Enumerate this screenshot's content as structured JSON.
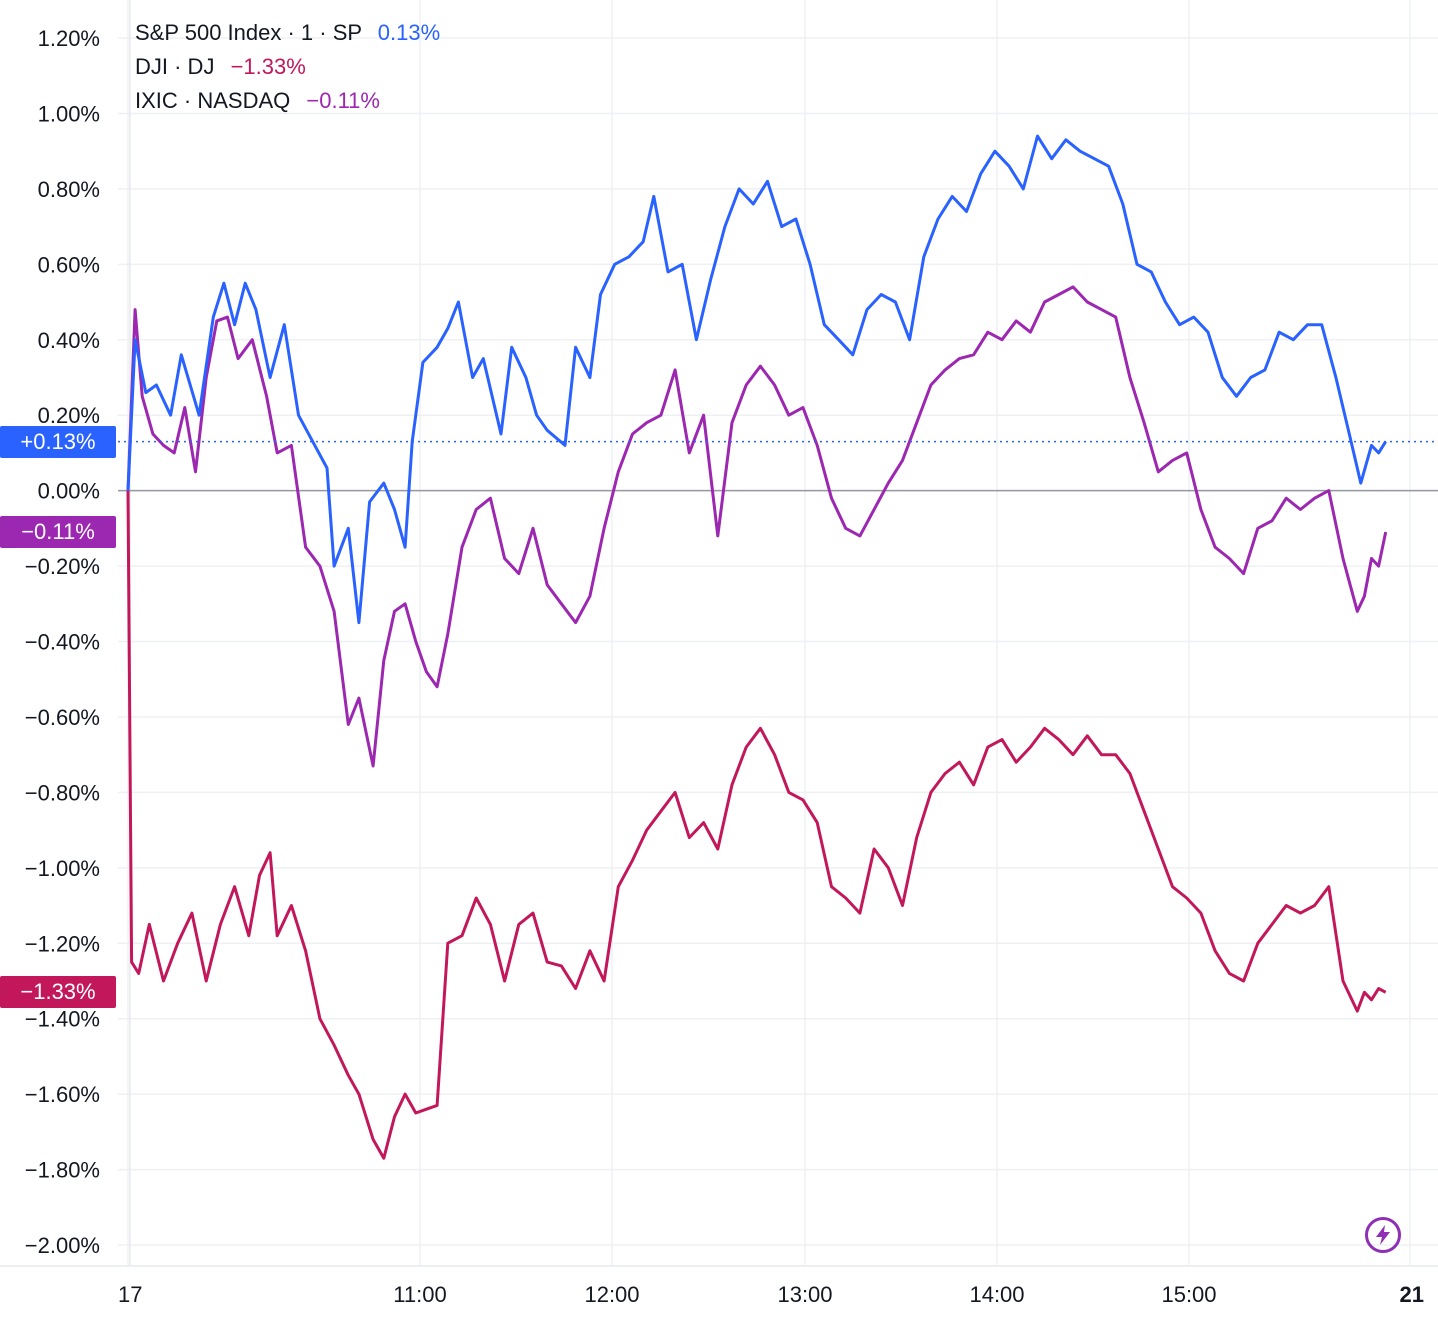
{
  "legend": {
    "rows": [
      {
        "label": "S&P 500 Index · 1 · SP",
        "value": "0.13%",
        "color": "#2962ff"
      },
      {
        "label": "DJI · DJ",
        "value": "−1.33%",
        "color": "#c2185b"
      },
      {
        "label": "IXIC · NASDAQ",
        "value": "−0.11%",
        "color": "#9c27b0"
      }
    ]
  },
  "badges": {
    "sp": "+0.13%",
    "ixic": "−0.11%",
    "dji": "−1.33%"
  },
  "chart_data": {
    "type": "line",
    "ylim": [
      -2.0,
      1.2
    ],
    "yticks": [
      "1.20%",
      "1.00%",
      "0.80%",
      "0.60%",
      "0.40%",
      "0.20%",
      "0.00%",
      "−0.20%",
      "−0.40%",
      "−0.60%",
      "−0.80%",
      "−1.00%",
      "−1.20%",
      "−1.40%",
      "−1.60%",
      "−1.80%",
      "−2.00%"
    ],
    "xticks": [
      "17",
      "11:00",
      "12:00",
      "13:00",
      "14:00",
      "15:00",
      "21"
    ],
    "grid": true,
    "series": [
      {
        "name": "S&P 500 Index · 1 · SP",
        "color": "#2962ff",
        "last": 0.13,
        "points": [
          [
            "10:00",
            0.0
          ],
          [
            "10:02",
            0.4
          ],
          [
            "10:05",
            0.26
          ],
          [
            "10:08",
            0.28
          ],
          [
            "10:12",
            0.2
          ],
          [
            "10:15",
            0.36
          ],
          [
            "10:20",
            0.2
          ],
          [
            "10:24",
            0.46
          ],
          [
            "10:27",
            0.55
          ],
          [
            "10:30",
            0.44
          ],
          [
            "10:33",
            0.55
          ],
          [
            "10:36",
            0.48
          ],
          [
            "10:40",
            0.3
          ],
          [
            "10:44",
            0.44
          ],
          [
            "10:48",
            0.2
          ],
          [
            "10:52",
            0.13
          ],
          [
            "10:56",
            0.06
          ],
          [
            "10:58",
            -0.2
          ],
          [
            "11:02",
            -0.1
          ],
          [
            "11:05",
            -0.35
          ],
          [
            "11:08",
            -0.03
          ],
          [
            "11:12",
            0.02
          ],
          [
            "11:15",
            -0.05
          ],
          [
            "11:18",
            -0.15
          ],
          [
            "11:20",
            0.13
          ],
          [
            "11:23",
            0.34
          ],
          [
            "11:27",
            0.38
          ],
          [
            "11:30",
            0.43
          ],
          [
            "11:33",
            0.5
          ],
          [
            "11:37",
            0.3
          ],
          [
            "11:40",
            0.35
          ],
          [
            "11:45",
            0.15
          ],
          [
            "11:48",
            0.38
          ],
          [
            "11:52",
            0.3
          ],
          [
            "11:55",
            0.2
          ],
          [
            "11:58",
            0.16
          ],
          [
            "12:03",
            0.12
          ],
          [
            "12:06",
            0.38
          ],
          [
            "12:10",
            0.3
          ],
          [
            "12:13",
            0.52
          ],
          [
            "12:17",
            0.6
          ],
          [
            "12:21",
            0.62
          ],
          [
            "12:25",
            0.66
          ],
          [
            "12:28",
            0.78
          ],
          [
            "12:32",
            0.58
          ],
          [
            "12:36",
            0.6
          ],
          [
            "12:40",
            0.4
          ],
          [
            "12:44",
            0.56
          ],
          [
            "12:48",
            0.7
          ],
          [
            "12:52",
            0.8
          ],
          [
            "12:56",
            0.76
          ],
          [
            "13:00",
            0.82
          ],
          [
            "13:04",
            0.7
          ],
          [
            "13:08",
            0.72
          ],
          [
            "13:12",
            0.6
          ],
          [
            "13:16",
            0.44
          ],
          [
            "13:20",
            0.4
          ],
          [
            "13:24",
            0.36
          ],
          [
            "13:28",
            0.48
          ],
          [
            "13:32",
            0.52
          ],
          [
            "13:36",
            0.5
          ],
          [
            "13:40",
            0.4
          ],
          [
            "13:44",
            0.62
          ],
          [
            "13:48",
            0.72
          ],
          [
            "13:52",
            0.78
          ],
          [
            "13:56",
            0.74
          ],
          [
            "14:00",
            0.84
          ],
          [
            "14:04",
            0.9
          ],
          [
            "14:08",
            0.86
          ],
          [
            "14:12",
            0.8
          ],
          [
            "14:16",
            0.94
          ],
          [
            "14:20",
            0.88
          ],
          [
            "14:24",
            0.93
          ],
          [
            "14:28",
            0.9
          ],
          [
            "14:32",
            0.88
          ],
          [
            "14:36",
            0.86
          ],
          [
            "14:40",
            0.76
          ],
          [
            "14:44",
            0.6
          ],
          [
            "14:48",
            0.58
          ],
          [
            "14:52",
            0.5
          ],
          [
            "14:56",
            0.44
          ],
          [
            "15:00",
            0.46
          ],
          [
            "15:04",
            0.42
          ],
          [
            "15:08",
            0.3
          ],
          [
            "15:12",
            0.25
          ],
          [
            "15:16",
            0.3
          ],
          [
            "15:20",
            0.32
          ],
          [
            "15:24",
            0.42
          ],
          [
            "15:28",
            0.4
          ],
          [
            "15:32",
            0.44
          ],
          [
            "15:36",
            0.44
          ],
          [
            "15:40",
            0.3
          ],
          [
            "15:44",
            0.14
          ],
          [
            "15:47",
            0.02
          ],
          [
            "15:50",
            0.12
          ],
          [
            "15:52",
            0.1
          ],
          [
            "15:54",
            0.13
          ]
        ]
      },
      {
        "name": "DJI · DJ",
        "color": "#c2185b",
        "last": -1.33,
        "points": [
          [
            "10:00",
            0.0
          ],
          [
            "10:01",
            -1.25
          ],
          [
            "10:03",
            -1.28
          ],
          [
            "10:06",
            -1.15
          ],
          [
            "10:10",
            -1.3
          ],
          [
            "10:14",
            -1.2
          ],
          [
            "10:18",
            -1.12
          ],
          [
            "10:22",
            -1.3
          ],
          [
            "10:26",
            -1.15
          ],
          [
            "10:30",
            -1.05
          ],
          [
            "10:34",
            -1.18
          ],
          [
            "10:37",
            -1.02
          ],
          [
            "10:40",
            -0.96
          ],
          [
            "10:42",
            -1.18
          ],
          [
            "10:46",
            -1.1
          ],
          [
            "10:50",
            -1.22
          ],
          [
            "10:54",
            -1.4
          ],
          [
            "10:58",
            -1.47
          ],
          [
            "11:02",
            -1.55
          ],
          [
            "11:05",
            -1.6
          ],
          [
            "11:09",
            -1.72
          ],
          [
            "11:12",
            -1.77
          ],
          [
            "11:15",
            -1.66
          ],
          [
            "11:18",
            -1.6
          ],
          [
            "11:21",
            -1.65
          ],
          [
            "11:24",
            -1.64
          ],
          [
            "11:27",
            -1.63
          ],
          [
            "11:30",
            -1.2
          ],
          [
            "11:34",
            -1.18
          ],
          [
            "11:38",
            -1.08
          ],
          [
            "11:42",
            -1.15
          ],
          [
            "11:46",
            -1.3
          ],
          [
            "11:50",
            -1.15
          ],
          [
            "11:54",
            -1.12
          ],
          [
            "11:58",
            -1.25
          ],
          [
            "12:02",
            -1.26
          ],
          [
            "12:06",
            -1.32
          ],
          [
            "12:10",
            -1.22
          ],
          [
            "12:14",
            -1.3
          ],
          [
            "12:18",
            -1.05
          ],
          [
            "12:22",
            -0.98
          ],
          [
            "12:26",
            -0.9
          ],
          [
            "12:30",
            -0.85
          ],
          [
            "12:34",
            -0.8
          ],
          [
            "12:38",
            -0.92
          ],
          [
            "12:42",
            -0.88
          ],
          [
            "12:46",
            -0.95
          ],
          [
            "12:50",
            -0.78
          ],
          [
            "12:54",
            -0.68
          ],
          [
            "12:58",
            -0.63
          ],
          [
            "13:02",
            -0.7
          ],
          [
            "13:06",
            -0.8
          ],
          [
            "13:10",
            -0.82
          ],
          [
            "13:14",
            -0.88
          ],
          [
            "13:18",
            -1.05
          ],
          [
            "13:22",
            -1.08
          ],
          [
            "13:26",
            -1.12
          ],
          [
            "13:30",
            -0.95
          ],
          [
            "13:34",
            -1.0
          ],
          [
            "13:38",
            -1.1
          ],
          [
            "13:42",
            -0.92
          ],
          [
            "13:46",
            -0.8
          ],
          [
            "13:50",
            -0.75
          ],
          [
            "13:54",
            -0.72
          ],
          [
            "13:58",
            -0.78
          ],
          [
            "14:02",
            -0.68
          ],
          [
            "14:06",
            -0.66
          ],
          [
            "14:10",
            -0.72
          ],
          [
            "14:14",
            -0.68
          ],
          [
            "14:18",
            -0.63
          ],
          [
            "14:22",
            -0.66
          ],
          [
            "14:26",
            -0.7
          ],
          [
            "14:30",
            -0.65
          ],
          [
            "14:34",
            -0.7
          ],
          [
            "14:38",
            -0.7
          ],
          [
            "14:42",
            -0.75
          ],
          [
            "14:46",
            -0.85
          ],
          [
            "14:50",
            -0.95
          ],
          [
            "14:54",
            -1.05
          ],
          [
            "14:58",
            -1.08
          ],
          [
            "15:02",
            -1.12
          ],
          [
            "15:06",
            -1.22
          ],
          [
            "15:10",
            -1.28
          ],
          [
            "15:14",
            -1.3
          ],
          [
            "15:18",
            -1.2
          ],
          [
            "15:22",
            -1.15
          ],
          [
            "15:26",
            -1.1
          ],
          [
            "15:30",
            -1.12
          ],
          [
            "15:34",
            -1.1
          ],
          [
            "15:38",
            -1.05
          ],
          [
            "15:42",
            -1.3
          ],
          [
            "15:46",
            -1.38
          ],
          [
            "15:48",
            -1.33
          ],
          [
            "15:50",
            -1.35
          ],
          [
            "15:52",
            -1.32
          ],
          [
            "15:54",
            -1.33
          ]
        ]
      },
      {
        "name": "IXIC · NASDAQ",
        "color": "#9c27b0",
        "last": -0.11,
        "points": [
          [
            "10:00",
            0.0
          ],
          [
            "10:02",
            0.48
          ],
          [
            "10:04",
            0.25
          ],
          [
            "10:07",
            0.15
          ],
          [
            "10:10",
            0.12
          ],
          [
            "10:13",
            0.1
          ],
          [
            "10:16",
            0.22
          ],
          [
            "10:19",
            0.05
          ],
          [
            "10:22",
            0.3
          ],
          [
            "10:25",
            0.45
          ],
          [
            "10:28",
            0.46
          ],
          [
            "10:31",
            0.35
          ],
          [
            "10:35",
            0.4
          ],
          [
            "10:39",
            0.25
          ],
          [
            "10:42",
            0.1
          ],
          [
            "10:46",
            0.12
          ],
          [
            "10:50",
            -0.15
          ],
          [
            "10:54",
            -0.2
          ],
          [
            "10:58",
            -0.32
          ],
          [
            "11:02",
            -0.62
          ],
          [
            "11:05",
            -0.55
          ],
          [
            "11:09",
            -0.73
          ],
          [
            "11:12",
            -0.45
          ],
          [
            "11:15",
            -0.32
          ],
          [
            "11:18",
            -0.3
          ],
          [
            "11:21",
            -0.4
          ],
          [
            "11:24",
            -0.48
          ],
          [
            "11:27",
            -0.52
          ],
          [
            "11:30",
            -0.38
          ],
          [
            "11:34",
            -0.15
          ],
          [
            "11:38",
            -0.05
          ],
          [
            "11:42",
            -0.02
          ],
          [
            "11:46",
            -0.18
          ],
          [
            "11:50",
            -0.22
          ],
          [
            "11:54",
            -0.1
          ],
          [
            "11:58",
            -0.25
          ],
          [
            "12:02",
            -0.3
          ],
          [
            "12:06",
            -0.35
          ],
          [
            "12:10",
            -0.28
          ],
          [
            "12:14",
            -0.1
          ],
          [
            "12:18",
            0.05
          ],
          [
            "12:22",
            0.15
          ],
          [
            "12:26",
            0.18
          ],
          [
            "12:30",
            0.2
          ],
          [
            "12:34",
            0.32
          ],
          [
            "12:38",
            0.1
          ],
          [
            "12:42",
            0.2
          ],
          [
            "12:46",
            -0.12
          ],
          [
            "12:50",
            0.18
          ],
          [
            "12:54",
            0.28
          ],
          [
            "12:58",
            0.33
          ],
          [
            "13:02",
            0.28
          ],
          [
            "13:06",
            0.2
          ],
          [
            "13:10",
            0.22
          ],
          [
            "13:14",
            0.12
          ],
          [
            "13:18",
            -0.02
          ],
          [
            "13:22",
            -0.1
          ],
          [
            "13:26",
            -0.12
          ],
          [
            "13:30",
            -0.05
          ],
          [
            "13:34",
            0.02
          ],
          [
            "13:38",
            0.08
          ],
          [
            "13:42",
            0.18
          ],
          [
            "13:46",
            0.28
          ],
          [
            "13:50",
            0.32
          ],
          [
            "13:54",
            0.35
          ],
          [
            "13:58",
            0.36
          ],
          [
            "14:02",
            0.42
          ],
          [
            "14:06",
            0.4
          ],
          [
            "14:10",
            0.45
          ],
          [
            "14:14",
            0.42
          ],
          [
            "14:18",
            0.5
          ],
          [
            "14:22",
            0.52
          ],
          [
            "14:26",
            0.54
          ],
          [
            "14:30",
            0.5
          ],
          [
            "14:34",
            0.48
          ],
          [
            "14:38",
            0.46
          ],
          [
            "14:42",
            0.3
          ],
          [
            "14:46",
            0.18
          ],
          [
            "14:50",
            0.05
          ],
          [
            "14:54",
            0.08
          ],
          [
            "14:58",
            0.1
          ],
          [
            "15:02",
            -0.05
          ],
          [
            "15:06",
            -0.15
          ],
          [
            "15:10",
            -0.18
          ],
          [
            "15:14",
            -0.22
          ],
          [
            "15:18",
            -0.1
          ],
          [
            "15:22",
            -0.08
          ],
          [
            "15:26",
            -0.02
          ],
          [
            "15:30",
            -0.05
          ],
          [
            "15:34",
            -0.02
          ],
          [
            "15:38",
            0.0
          ],
          [
            "15:42",
            -0.18
          ],
          [
            "15:46",
            -0.32
          ],
          [
            "15:48",
            -0.28
          ],
          [
            "15:50",
            -0.18
          ],
          [
            "15:52",
            -0.2
          ],
          [
            "15:54",
            -0.11
          ]
        ]
      }
    ]
  },
  "icons": {
    "bolt": "lightning-bolt-icon"
  }
}
